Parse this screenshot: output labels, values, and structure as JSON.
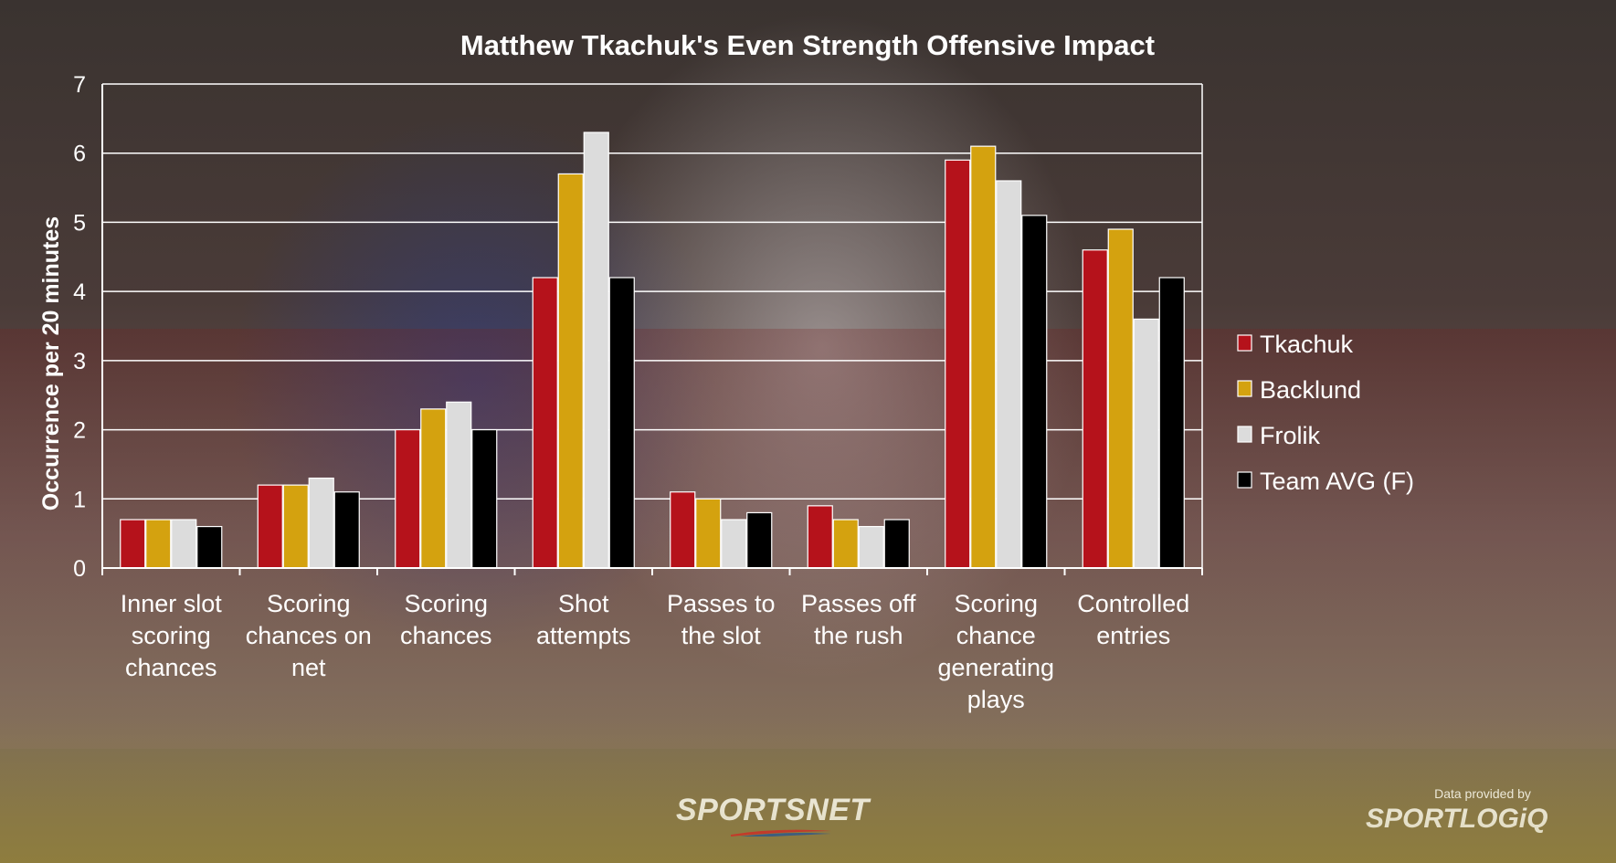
{
  "chart_data": {
    "type": "bar",
    "title": "Matthew Tkachuk's Even Strength Offensive Impact",
    "xlabel": "",
    "ylabel": "Occurrence per 20 minutes",
    "ylim": [
      0,
      7
    ],
    "yticks": [
      0,
      1,
      2,
      3,
      4,
      5,
      6,
      7
    ],
    "grid": true,
    "legend_position": "right",
    "categories": [
      [
        "Inner slot",
        "scoring",
        "chances"
      ],
      [
        "Scoring",
        "chances on",
        "net"
      ],
      [
        "Scoring",
        "chances"
      ],
      [
        "Shot",
        "attempts"
      ],
      [
        "Passes to",
        "the slot"
      ],
      [
        "Passes off",
        "the rush"
      ],
      [
        "Scoring",
        "chance",
        "generating",
        "plays"
      ],
      [
        "Controlled",
        "entries"
      ]
    ],
    "series": [
      {
        "name": "Tkachuk",
        "color": "#b5121b",
        "values": [
          0.7,
          1.2,
          2.0,
          4.2,
          1.1,
          0.9,
          5.9,
          4.6
        ]
      },
      {
        "name": "Backlund",
        "color": "#d4a20f",
        "values": [
          0.7,
          1.2,
          2.3,
          5.7,
          1.0,
          0.7,
          6.1,
          4.9
        ]
      },
      {
        "name": "Frolik",
        "color": "#dcdcdc",
        "values": [
          0.7,
          1.3,
          2.4,
          6.3,
          0.7,
          0.6,
          5.6,
          3.6
        ]
      },
      {
        "name": "Team AVG (F)",
        "color": "#000000",
        "values": [
          0.6,
          1.1,
          2.0,
          4.2,
          0.8,
          0.7,
          5.1,
          4.2
        ]
      }
    ]
  },
  "branding": {
    "publisher": "SPORTSNET",
    "credit": "Data provided by",
    "provider": "SPORTLOGiQ"
  }
}
